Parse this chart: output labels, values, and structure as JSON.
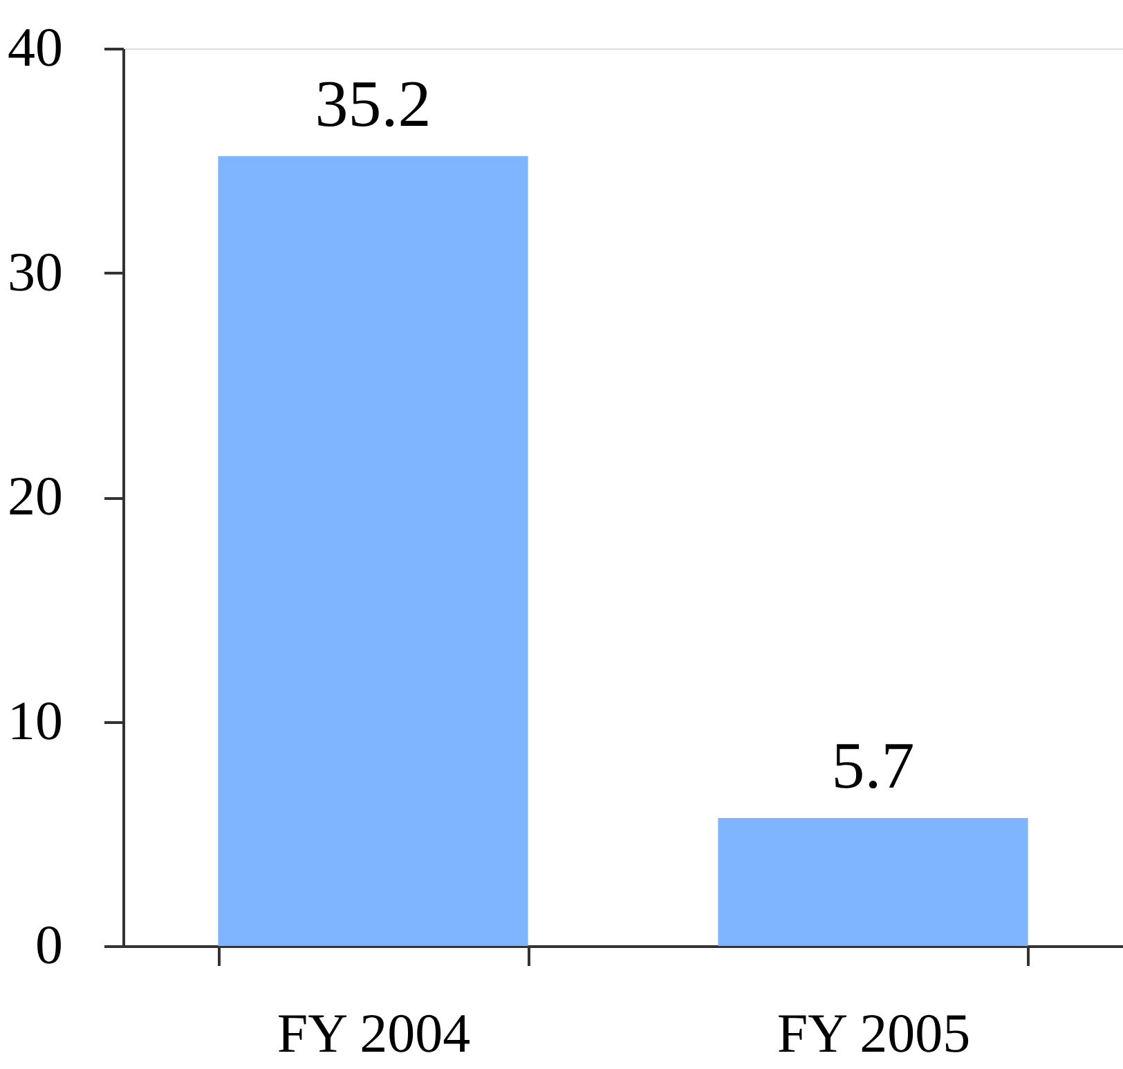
{
  "chart_data": {
    "type": "bar",
    "categories": [
      "FY 2004",
      "FY 2005"
    ],
    "values": [
      35.2,
      5.7
    ],
    "color": "#7fb4ff",
    "ylim": [
      0,
      40
    ],
    "yticks": [
      0,
      10,
      20,
      30,
      40
    ],
    "grid": false,
    "data_labels": true
  }
}
